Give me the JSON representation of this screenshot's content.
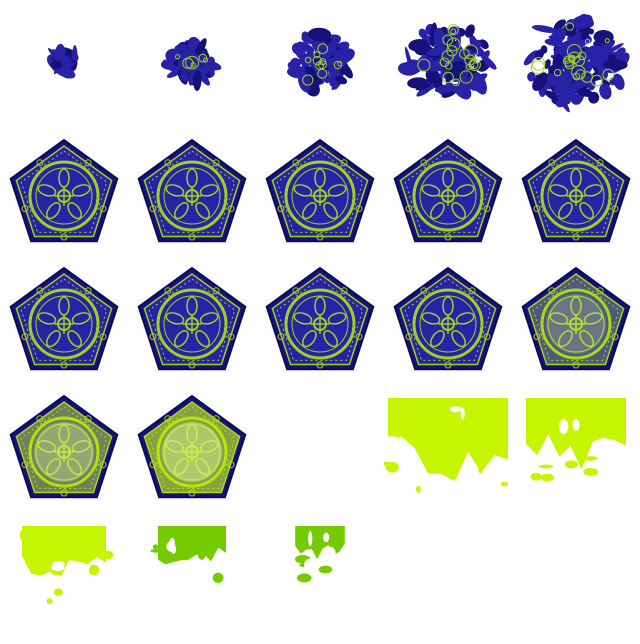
{
  "sprite_sheet": {
    "columns": 5,
    "rows": 5,
    "colors": {
      "background": "#ffffff",
      "tile_blue": "#2a22a6",
      "tile_dark": "#16107a",
      "pattern_green": "#9fd31a",
      "burst_lime": "#c6f500",
      "burst_green": "#74cc00"
    },
    "frames": [
      {
        "kind": "assemble",
        "level": 0.05
      },
      {
        "kind": "assemble",
        "level": 0.25
      },
      {
        "kind": "assemble",
        "level": 0.45
      },
      {
        "kind": "assemble",
        "level": 0.7
      },
      {
        "kind": "assemble",
        "level": 0.85
      },
      {
        "kind": "tile",
        "glow": 0.0
      },
      {
        "kind": "tile",
        "glow": 0.0
      },
      {
        "kind": "tile",
        "glow": 0.0
      },
      {
        "kind": "tile",
        "glow": 0.0
      },
      {
        "kind": "tile",
        "glow": 0.0
      },
      {
        "kind": "tile",
        "glow": 0.0
      },
      {
        "kind": "tile",
        "glow": 0.0
      },
      {
        "kind": "tile",
        "glow": 0.0
      },
      {
        "kind": "tile",
        "glow": 0.0
      },
      {
        "kind": "tile",
        "glow": 0.35
      },
      {
        "kind": "tile",
        "glow": 0.6
      },
      {
        "kind": "tile",
        "glow": 0.8
      },
      {
        "kind": "empty"
      },
      {
        "kind": "burst",
        "level": 1.0
      },
      {
        "kind": "burst",
        "level": 0.75
      },
      {
        "kind": "burst",
        "level": 0.55
      },
      {
        "kind": "burst",
        "level": 0.35
      },
      {
        "kind": "burst",
        "level": 0.12
      },
      {
        "kind": "empty"
      },
      {
        "kind": "empty"
      }
    ]
  }
}
